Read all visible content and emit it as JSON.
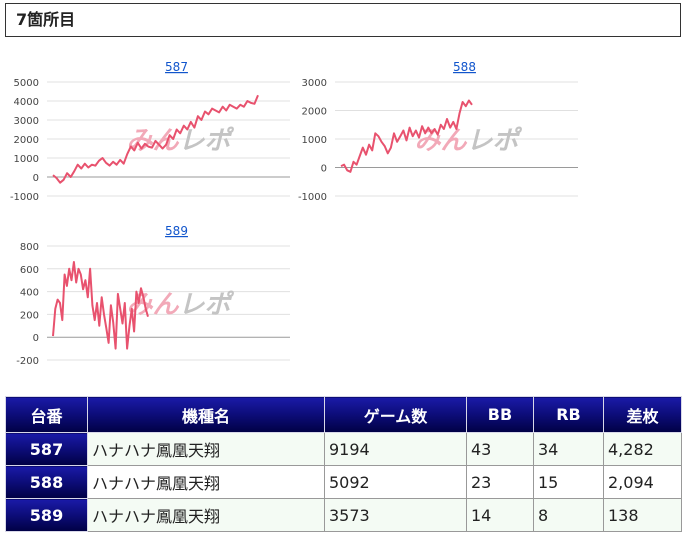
{
  "section": {
    "title": "7箇所目"
  },
  "watermark": "みんレポ",
  "charts": [
    {
      "title": "587",
      "yticks": [
        5000,
        4000,
        3000,
        2000,
        1000,
        0,
        -1000
      ],
      "ylim": [
        -1000,
        5000
      ],
      "values": [
        100,
        -50,
        -300,
        -150,
        200,
        0,
        300,
        650,
        450,
        700,
        500,
        650,
        600,
        850,
        1000,
        750,
        600,
        800,
        650,
        900,
        700,
        1200,
        1600,
        1400,
        1800,
        1500,
        1750,
        1600,
        1550,
        1900,
        1700,
        1500,
        1700,
        2200,
        2000,
        2500,
        2300,
        2700,
        2500,
        2900,
        2600,
        3200,
        3000,
        3450,
        3300,
        3600,
        3500,
        3400,
        3700,
        3500,
        3800,
        3700,
        3600,
        3800,
        3700,
        4000,
        3900,
        3850,
        4300
      ]
    },
    {
      "title": "588",
      "yticks": [
        3000,
        2000,
        1000,
        0,
        -1000
      ],
      "ylim": [
        -1000,
        3000
      ],
      "values": [
        50,
        100,
        -100,
        -150,
        200,
        100,
        400,
        700,
        450,
        800,
        600,
        1200,
        1100,
        900,
        750,
        500,
        700,
        1200,
        900,
        1100,
        1300,
        950,
        1400,
        1100,
        1300,
        1050,
        1450,
        1200,
        1400,
        1200,
        1350,
        1150,
        1500,
        1350,
        1700,
        1400,
        1600,
        1350,
        1900,
        2300,
        2150,
        2350,
        2200
      ]
    },
    {
      "title": "589",
      "yticks": [
        800,
        600,
        400,
        200,
        0,
        -200
      ],
      "ylim": [
        -200,
        800
      ],
      "values": [
        10,
        250,
        330,
        300,
        150,
        550,
        450,
        600,
        500,
        660,
        480,
        600,
        550,
        420,
        500,
        350,
        600,
        280,
        150,
        300,
        100,
        350,
        200,
        80,
        -50,
        280,
        130,
        -100,
        380,
        250,
        120,
        300,
        -100,
        100,
        250,
        50,
        400,
        300,
        430,
        350,
        250,
        180
      ]
    }
  ],
  "table": {
    "headers": [
      "台番",
      "機種名",
      "ゲーム数",
      "BB",
      "RB",
      "差枚"
    ],
    "rows": [
      [
        "587",
        "ハナハナ鳳凰天翔",
        "9194",
        "43",
        "34",
        "4,282"
      ],
      [
        "588",
        "ハナハナ鳳凰天翔",
        "5092",
        "23",
        "15",
        "2,094"
      ],
      [
        "589",
        "ハナハナ鳳凰天翔",
        "3573",
        "14",
        "8",
        "138"
      ]
    ]
  },
  "colors": {
    "line": "#e8526e",
    "header_bg": "#0c0c78",
    "link": "#1155cc"
  }
}
